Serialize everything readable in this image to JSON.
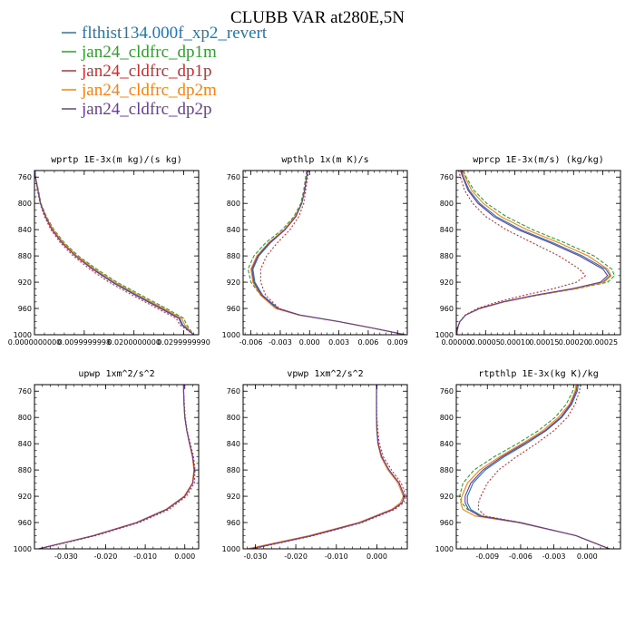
{
  "figure": {
    "title": "CLUBB VAR at280E,5N"
  },
  "legend": [
    {
      "name": "flthist134.000f_xp2_revert",
      "color": "#1f77b4"
    },
    {
      "name": "jan24_cldfrc_dp1m",
      "color": "#2ca02c"
    },
    {
      "name": "jan24_cldfrc_dp1p",
      "color": "#d62728"
    },
    {
      "name": "jan24_cldfrc_dp2m",
      "color": "#ff7f0e"
    },
    {
      "name": "jan24_cldfrc_dp2p",
      "color": "#6a3d9a"
    }
  ],
  "chart_data": [
    {
      "type": "line",
      "title": "wprtp  1E-3x(m kg)/(s kg)",
      "xlim": [
        0.0,
        0.033
      ],
      "ylim": [
        1000,
        750
      ],
      "xticks": [
        0.0,
        0.01,
        0.02,
        0.03
      ],
      "xtick_labels": [
        "0.0000000000",
        "0.0099999998",
        "0.0200000000",
        "0.0299999990"
      ],
      "yticks": [
        760,
        800,
        840,
        880,
        920,
        960,
        1000
      ],
      "y": [
        750,
        760,
        780,
        800,
        820,
        840,
        860,
        880,
        900,
        920,
        940,
        960,
        975,
        985,
        1000
      ],
      "series": [
        {
          "name": "flthist134.000f_xp2_revert",
          "values": [
            0.0001,
            0.0002,
            0.0007,
            0.0012,
            0.0022,
            0.0036,
            0.0056,
            0.0083,
            0.0118,
            0.0158,
            0.0206,
            0.0256,
            0.0292,
            0.0298,
            0.032
          ]
        },
        {
          "name": "jan24_cldfrc_dp1m",
          "values": [
            0.0001,
            0.0002,
            0.0008,
            0.0013,
            0.0024,
            0.0039,
            0.006,
            0.0088,
            0.0125,
            0.0166,
            0.0215,
            0.0265,
            0.03,
            0.0306,
            0.032
          ]
        },
        {
          "name": "jan24_cldfrc_dp1p",
          "values": [
            0.0001,
            0.0002,
            0.0006,
            0.0011,
            0.002,
            0.0033,
            0.0052,
            0.0078,
            0.0111,
            0.015,
            0.0197,
            0.0247,
            0.0285,
            0.0292,
            0.032
          ]
        },
        {
          "name": "jan24_cldfrc_dp2m",
          "values": [
            0.0001,
            0.0002,
            0.0007,
            0.0012,
            0.0023,
            0.0037,
            0.0058,
            0.0085,
            0.0121,
            0.0162,
            0.021,
            0.026,
            0.0296,
            0.0302,
            0.032
          ]
        },
        {
          "name": "jan24_cldfrc_dp2p",
          "values": [
            0.0001,
            0.0002,
            0.0007,
            0.0012,
            0.0022,
            0.0035,
            0.0055,
            0.0082,
            0.0116,
            0.0156,
            0.0203,
            0.0253,
            0.029,
            0.0296,
            0.032
          ]
        }
      ]
    },
    {
      "type": "line",
      "title": "wpthlp  1x(m K)/s",
      "xlim": [
        -0.0068,
        0.01
      ],
      "ylim": [
        1000,
        750
      ],
      "xticks": [
        -0.006,
        -0.003,
        0.0,
        0.003,
        0.006,
        0.009
      ],
      "xtick_labels": [
        "-0.006",
        "-0.003",
        "0.000",
        "0.003",
        "0.006",
        "0.009"
      ],
      "yticks": [
        760,
        800,
        840,
        880,
        920,
        960,
        1000
      ],
      "y": [
        750,
        760,
        780,
        800,
        820,
        840,
        860,
        880,
        900,
        920,
        940,
        960,
        970,
        980,
        990,
        1000
      ],
      "series": [
        {
          "name": "flthist134.000f_xp2_revert",
          "values": [
            -0.0002,
            -0.0003,
            -0.0005,
            -0.0008,
            -0.0014,
            -0.0025,
            -0.004,
            -0.0052,
            -0.0058,
            -0.0056,
            -0.0048,
            -0.0032,
            -0.001,
            0.003,
            0.0065,
            0.0098
          ]
        },
        {
          "name": "jan24_cldfrc_dp1m",
          "values": [
            -0.0003,
            -0.0004,
            -0.0006,
            -0.0009,
            -0.0016,
            -0.0028,
            -0.0045,
            -0.0057,
            -0.0063,
            -0.006,
            -0.005,
            -0.0033,
            -0.001,
            0.003,
            0.0065,
            0.0098
          ]
        },
        {
          "name": "jan24_cldfrc_dp1p",
          "values": [
            -0.0001,
            -0.0002,
            -0.0004,
            -0.0006,
            -0.0011,
            -0.002,
            -0.0033,
            -0.0044,
            -0.005,
            -0.005,
            -0.0045,
            -0.0031,
            -0.001,
            0.003,
            0.0065,
            0.0098
          ]
        },
        {
          "name": "jan24_cldfrc_dp2m",
          "values": [
            -0.0002,
            -0.0003,
            -0.0005,
            -0.0008,
            -0.0015,
            -0.0026,
            -0.0042,
            -0.0054,
            -0.006,
            -0.0058,
            -0.005,
            -0.0035,
            -0.0011,
            0.003,
            0.0065,
            0.0098
          ]
        },
        {
          "name": "jan24_cldfrc_dp2p",
          "values": [
            -0.0002,
            -0.0003,
            -0.0005,
            -0.0008,
            -0.0014,
            -0.0025,
            -0.0041,
            -0.0053,
            -0.0059,
            -0.0057,
            -0.0049,
            -0.0033,
            -0.001,
            0.003,
            0.0065,
            0.0098
          ]
        }
      ]
    },
    {
      "type": "line",
      "title": "wprcp  1E-3x(m/s) (kg/kg)",
      "xlim": [
        0.0,
        0.00028
      ],
      "ylim": [
        1000,
        750
      ],
      "xticks": [
        0.0,
        5e-05,
        0.0001,
        0.00015,
        0.0002,
        0.00025
      ],
      "xtick_labels": [
        "0.00000",
        "0.00005",
        "0.00010",
        "0.00015",
        "0.00020",
        "0.00025"
      ],
      "yticks": [
        760,
        800,
        840,
        880,
        920,
        960,
        1000
      ],
      "y": [
        750,
        760,
        780,
        800,
        820,
        840,
        860,
        880,
        900,
        910,
        920,
        930,
        940,
        950,
        960,
        970,
        980,
        990,
        1000
      ],
      "series": [
        {
          "name": "flthist134.000f_xp2_revert",
          "values": [
            8e-06,
            1.2e-05,
            2.2e-05,
            4e-05,
            6.8e-05,
            0.00011,
            0.000165,
            0.000215,
            0.000255,
            0.000262,
            0.00025,
            0.0002,
            0.000135,
            8e-05,
            4e-05,
            1.6e-05,
            6e-06,
            2e-06,
            1e-06
          ]
        },
        {
          "name": "jan24_cldfrc_dp1m",
          "values": [
            1.2e-05,
            1.7e-05,
            3e-05,
            5.2e-05,
            8.5e-05,
            0.00013,
            0.000185,
            0.000235,
            0.000265,
            0.00027,
            0.000258,
            0.000205,
            0.000138,
            8.2e-05,
            4.1e-05,
            1.6e-05,
            6e-06,
            2e-06,
            1e-06
          ]
        },
        {
          "name": "jan24_cldfrc_dp1p",
          "values": [
            4e-06,
            7e-06,
            1.4e-05,
            2.8e-05,
            5e-05,
            8.5e-05,
            0.00013,
            0.000175,
            0.00021,
            0.00022,
            0.000205,
            0.000165,
            0.000115,
            7e-05,
            3.6e-05,
            1.5e-05,
            6e-06,
            2e-06,
            1e-06
          ]
        },
        {
          "name": "jan24_cldfrc_dp2m",
          "values": [
            1e-05,
            1.5e-05,
            2.6e-05,
            4.6e-05,
            7.6e-05,
            0.00012,
            0.000175,
            0.000225,
            0.000258,
            0.000264,
            0.000252,
            0.000202,
            0.000136,
            8.1e-05,
            4e-05,
            1.6e-05,
            6e-06,
            2e-06,
            1e-06
          ]
        },
        {
          "name": "jan24_cldfrc_dp2p",
          "values": [
            7e-06,
            1.1e-05,
            2e-05,
            3.7e-05,
            6.4e-05,
            0.000105,
            0.00016,
            0.00021,
            0.00025,
            0.000258,
            0.000246,
            0.000197,
            0.000133,
            7.9e-05,
            3.9e-05,
            1.6e-05,
            6e-06,
            2e-06,
            1e-06
          ]
        }
      ]
    },
    {
      "type": "line",
      "title": "upwp  1xm^2/s^2",
      "xlim": [
        -0.038,
        0.0035
      ],
      "ylim": [
        1000,
        750
      ],
      "xticks": [
        -0.03,
        -0.02,
        -0.01,
        0.0
      ],
      "xtick_labels": [
        "-0.030",
        "-0.020",
        "-0.010",
        "0.000"
      ],
      "yticks": [
        760,
        800,
        840,
        880,
        920,
        960,
        1000
      ],
      "y": [
        750,
        760,
        780,
        800,
        820,
        840,
        860,
        880,
        900,
        920,
        940,
        960,
        980,
        1000
      ],
      "series": [
        {
          "name": "flthist134.000f_xp2_revert",
          "values": [
            -0.0003,
            -0.0003,
            -0.0002,
            0.0,
            0.0005,
            0.0012,
            0.002,
            0.0024,
            0.002,
            0.0,
            -0.0045,
            -0.012,
            -0.023,
            -0.037
          ]
        },
        {
          "name": "jan24_cldfrc_dp1m",
          "values": [
            -0.0003,
            -0.0003,
            -0.0002,
            0.0,
            0.0005,
            0.0012,
            0.002,
            0.0024,
            0.002,
            0.0,
            -0.0045,
            -0.012,
            -0.023,
            -0.037
          ]
        },
        {
          "name": "jan24_cldfrc_dp1p",
          "values": [
            -0.0003,
            -0.0003,
            -0.0001,
            0.0001,
            0.0006,
            0.0014,
            0.0022,
            0.0026,
            0.0024,
            0.0004,
            -0.004,
            -0.0115,
            -0.0225,
            -0.0365
          ]
        },
        {
          "name": "jan24_cldfrc_dp2m",
          "values": [
            -0.0003,
            -0.0003,
            -0.0002,
            0.0,
            0.0005,
            0.0012,
            0.0019,
            0.0023,
            0.0019,
            -0.0002,
            -0.0048,
            -0.0123,
            -0.0233,
            -0.037
          ]
        },
        {
          "name": "jan24_cldfrc_dp2p",
          "values": [
            -0.0003,
            -0.0003,
            -0.0002,
            0.0,
            0.0005,
            0.0012,
            0.002,
            0.0024,
            0.002,
            0.0,
            -0.0046,
            -0.0121,
            -0.0231,
            -0.037
          ]
        }
      ]
    },
    {
      "type": "line",
      "title": "vpwp  1xm^2/s^2",
      "xlim": [
        -0.033,
        0.0075
      ],
      "ylim": [
        1000,
        750
      ],
      "xticks": [
        -0.03,
        -0.02,
        -0.01,
        0.0
      ],
      "xtick_labels": [
        "-0.030",
        "-0.020",
        "-0.010",
        "0.000"
      ],
      "yticks": [
        760,
        800,
        840,
        880,
        920,
        960,
        1000
      ],
      "y": [
        750,
        760,
        780,
        800,
        820,
        840,
        860,
        880,
        900,
        920,
        930,
        940,
        960,
        980,
        1000
      ],
      "series": [
        {
          "name": "flthist134.000f_xp2_revert",
          "values": [
            -0.0001,
            -0.0001,
            -0.0001,
            -0.0001,
            0.0,
            0.0003,
            0.0012,
            0.003,
            0.0055,
            0.0068,
            0.0062,
            0.004,
            -0.004,
            -0.016,
            -0.031
          ]
        },
        {
          "name": "jan24_cldfrc_dp1m",
          "values": [
            -0.0001,
            -0.0001,
            -0.0001,
            -0.0001,
            0.0,
            0.0003,
            0.0012,
            0.003,
            0.0055,
            0.0068,
            0.0062,
            0.004,
            -0.004,
            -0.016,
            -0.031
          ]
        },
        {
          "name": "jan24_cldfrc_dp1p",
          "values": [
            -0.0001,
            -0.0001,
            -0.0001,
            0.0,
            0.0002,
            0.0006,
            0.0016,
            0.0036,
            0.006,
            0.0072,
            0.0066,
            0.0044,
            -0.0036,
            -0.0156,
            -0.0306
          ]
        },
        {
          "name": "jan24_cldfrc_dp2m",
          "values": [
            -0.0001,
            -0.0001,
            -0.0001,
            -0.0001,
            0.0,
            0.0002,
            0.001,
            0.0027,
            0.0052,
            0.0065,
            0.0058,
            0.0036,
            -0.0045,
            -0.0168,
            -0.032
          ]
        },
        {
          "name": "jan24_cldfrc_dp2p",
          "values": [
            -0.0001,
            -0.0001,
            -0.0001,
            -0.0001,
            0.0,
            0.0003,
            0.0012,
            0.003,
            0.0055,
            0.0068,
            0.0062,
            0.004,
            -0.0041,
            -0.0162,
            -0.0312
          ]
        }
      ]
    },
    {
      "type": "line",
      "title": "rtpthlp  1E-3x(kg K)/kg",
      "xlim": [
        -0.0118,
        0.003
      ],
      "ylim": [
        1000,
        750
      ],
      "xticks": [
        -0.009,
        -0.006,
        -0.003,
        0.0
      ],
      "xtick_labels": [
        "-0.009",
        "-0.006",
        "-0.003",
        "0.000"
      ],
      "yticks": [
        760,
        800,
        840,
        880,
        920,
        960,
        1000
      ],
      "y": [
        750,
        760,
        780,
        800,
        820,
        840,
        860,
        880,
        900,
        920,
        930,
        940,
        950,
        960,
        980,
        1000
      ],
      "series": [
        {
          "name": "flthist134.000f_xp2_revert",
          "values": [
            -0.0008,
            -0.0009,
            -0.0014,
            -0.0023,
            -0.0037,
            -0.0055,
            -0.0075,
            -0.0092,
            -0.0103,
            -0.0108,
            -0.0108,
            -0.0105,
            -0.0095,
            -0.006,
            -0.001,
            0.002
          ]
        },
        {
          "name": "jan24_cldfrc_dp1m",
          "values": [
            -0.0012,
            -0.0013,
            -0.0019,
            -0.0029,
            -0.0044,
            -0.0063,
            -0.0084,
            -0.0102,
            -0.0112,
            -0.0115,
            -0.0113,
            -0.0108,
            -0.0096,
            -0.006,
            -0.001,
            0.002
          ]
        },
        {
          "name": "jan24_cldfrc_dp1p",
          "values": [
            -0.0006,
            -0.0007,
            -0.0011,
            -0.0018,
            -0.003,
            -0.0046,
            -0.0064,
            -0.008,
            -0.009,
            -0.0096,
            -0.0098,
            -0.0098,
            -0.0092,
            -0.006,
            -0.001,
            0.002
          ]
        },
        {
          "name": "jan24_cldfrc_dp2m",
          "values": [
            -0.001,
            -0.0011,
            -0.0016,
            -0.0026,
            -0.004,
            -0.0059,
            -0.0079,
            -0.0097,
            -0.0108,
            -0.0113,
            -0.0114,
            -0.0112,
            -0.0101,
            -0.0062,
            -0.001,
            0.002
          ]
        },
        {
          "name": "jan24_cldfrc_dp2p",
          "values": [
            -0.0009,
            -0.001,
            -0.0015,
            -0.0024,
            -0.0038,
            -0.0057,
            -0.0077,
            -0.0094,
            -0.0105,
            -0.011,
            -0.011,
            -0.0107,
            -0.0097,
            -0.0061,
            -0.001,
            0.002
          ]
        }
      ]
    }
  ]
}
